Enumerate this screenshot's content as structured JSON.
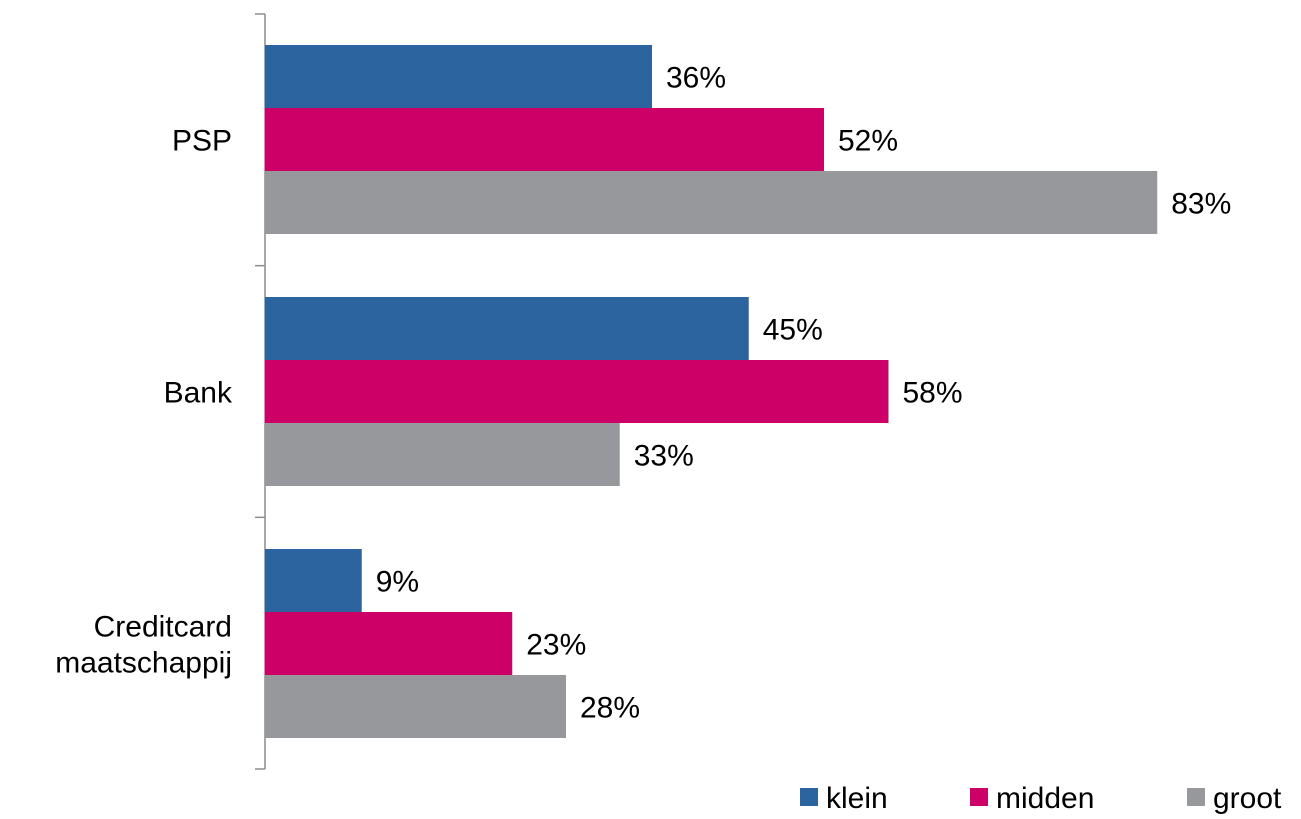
{
  "chart_data": {
    "type": "bar",
    "orientation": "horizontal",
    "categories": [
      "PSP",
      "Bank",
      "Creditcard maatschappij"
    ],
    "category_lines": [
      [
        "PSP"
      ],
      [
        "Bank"
      ],
      [
        "Creditcard",
        "maatschappij"
      ]
    ],
    "series": [
      {
        "name": "klein",
        "color": "#2c64a0",
        "values": [
          36,
          45,
          9
        ],
        "labels": [
          "36%",
          "45%",
          "9%"
        ]
      },
      {
        "name": "midden",
        "color": "#cc0066",
        "values": [
          52,
          58,
          23
        ],
        "labels": [
          "52%",
          "58%",
          "23%"
        ]
      },
      {
        "name": "groot",
        "color": "#97989b",
        "values": [
          83,
          33,
          28
        ],
        "labels": [
          "83%",
          "33%",
          "28%"
        ]
      }
    ],
    "unit": "%",
    "xlim": [
      0,
      100
    ],
    "grid": false,
    "legend_position": "bottom-right",
    "data_labels": true
  }
}
